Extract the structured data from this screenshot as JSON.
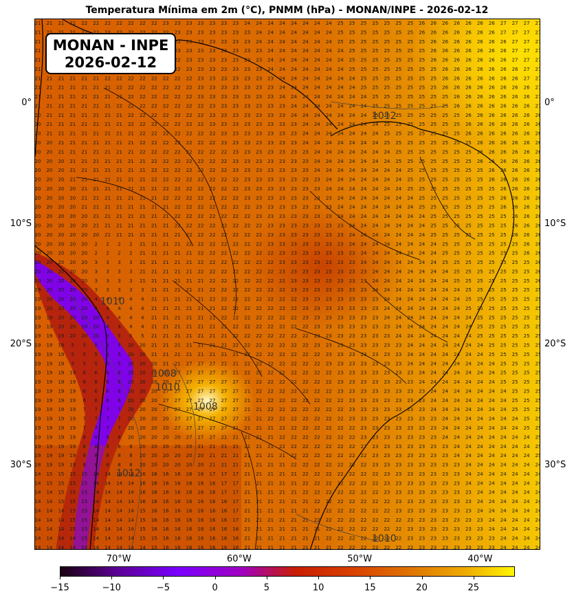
{
  "title": "Temperatura Mínima em 2m (°C), PNMM (hPa) - MONAN/INPE - 2026-02-12",
  "badge": {
    "line1": "MONAN - INPE",
    "line2": "2026-02-12"
  },
  "map": {
    "lon_range": [
      -77,
      -35
    ],
    "lat_range": [
      -37,
      7
    ],
    "lat_ticks": [
      {
        "value": 0,
        "label": "0°"
      },
      {
        "value": -10,
        "label": "10°S"
      },
      {
        "value": -20,
        "label": "20°S"
      },
      {
        "value": -30,
        "label": "30°S"
      }
    ],
    "lon_ticks": [
      {
        "value": -70,
        "label": "70°W"
      },
      {
        "value": -60,
        "label": "60°W"
      },
      {
        "value": -50,
        "label": "50°W"
      },
      {
        "value": -40,
        "label": "40°W"
      }
    ],
    "isobar_labels": [
      "1012",
      "1010",
      "1008",
      "1010",
      "1012",
      "1008",
      "1010"
    ]
  },
  "colorbar": {
    "min": -15,
    "max": 29,
    "ticks": [
      {
        "value": -15,
        "label": "−15"
      },
      {
        "value": -10,
        "label": "−10"
      },
      {
        "value": -5,
        "label": "−5"
      },
      {
        "value": 0,
        "label": "0"
      },
      {
        "value": 5,
        "label": "5"
      },
      {
        "value": 10,
        "label": "10"
      },
      {
        "value": 15,
        "label": "15"
      },
      {
        "value": 20,
        "label": "20"
      },
      {
        "value": 25,
        "label": "25"
      }
    ]
  },
  "colors": {
    "cold": "#1a0010",
    "purple": "#7a00ff",
    "red": "#c81e00",
    "orange": "#e07800",
    "yellow": "#fff700"
  }
}
